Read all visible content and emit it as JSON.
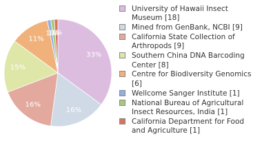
{
  "chart_data": {
    "type": "pie",
    "series": [
      {
        "name": "University of Hawaii Insect Museum [18]",
        "color": "#dcbde0"
      },
      {
        "name": "Mined from GenBank, NCBI [9]",
        "color": "#cfdae6"
      },
      {
        "name": "California State Collection of Arthropods [9]",
        "color": "#e3a99e"
      },
      {
        "name": "Southern China DNA Barcoding Center [8]",
        "color": "#dee6a8"
      },
      {
        "name": "Centre for Biodiversity Genomics [6]",
        "color": "#f0b27a"
      },
      {
        "name": "Wellcome Sanger Institute [1]",
        "color": "#93aee0"
      },
      {
        "name": "National Bureau of Agricultural Insect Resources, India [1]",
        "color": "#a9c77f"
      },
      {
        "name": "California Department for Food and Agriculture [1]",
        "color": "#d9735e"
      }
    ],
    "values": [
      33,
      16,
      16,
      15,
      11,
      1,
      1,
      1
    ],
    "value_labels": [
      "33%",
      "16%",
      "16%",
      "15%",
      "11%",
      "1%",
      "1%",
      "1%"
    ]
  }
}
